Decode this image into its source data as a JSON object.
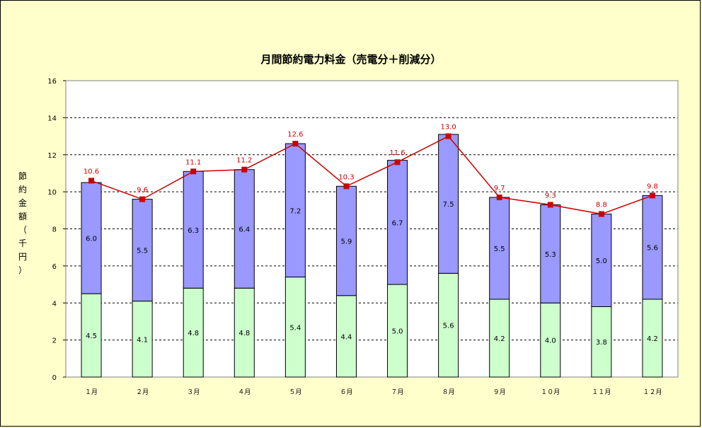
{
  "chart_data": {
    "type": "bar",
    "subtype": "stacked-bar-with-line",
    "title": "月間節約電力料金（売電分＋削減分）",
    "ylabel": "節約金額（千円）",
    "xlabel": "",
    "ylim": [
      0,
      16
    ],
    "yticks": [
      0,
      2,
      4,
      6,
      8,
      10,
      12,
      14,
      16
    ],
    "grid": true,
    "legend": "none",
    "categories": [
      "１月",
      "２月",
      "３月",
      "４月",
      "５月",
      "６月",
      "７月",
      "８月",
      "９月",
      "１０月",
      "１１月",
      "１２月"
    ],
    "series": [
      {
        "values": [
          4.5,
          4.1,
          4.8,
          4.8,
          5.4,
          4.4,
          5.0,
          5.6,
          4.2,
          4.0,
          3.8,
          4.2
        ],
        "color": "#ccffcc",
        "kind": "bar"
      },
      {
        "values": [
          6.0,
          5.5,
          6.3,
          6.4,
          7.2,
          5.9,
          6.7,
          7.5,
          5.5,
          5.3,
          5.0,
          5.6
        ],
        "color": "#9999ff",
        "kind": "bar"
      },
      {
        "values": [
          10.6,
          9.6,
          11.1,
          11.2,
          12.6,
          10.3,
          11.6,
          13.0,
          9.7,
          9.3,
          8.8,
          9.8
        ],
        "color": "#cc0000",
        "kind": "line"
      }
    ],
    "background_color": "#ffffcc",
    "plot_background": "#ffffff"
  }
}
